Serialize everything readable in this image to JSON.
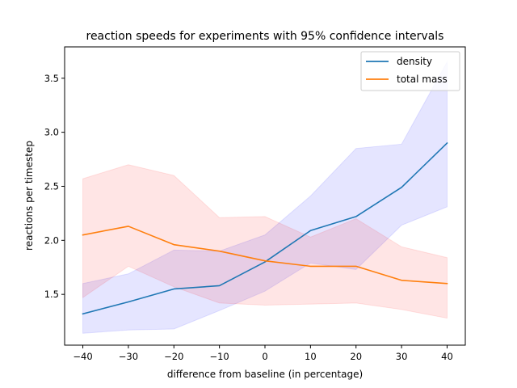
{
  "chart_data": {
    "type": "line",
    "title": "reaction speeds for experiments with 95% confidence intervals",
    "xlabel": "difference from baseline (in percentage)",
    "ylabel": "reactions per timestep",
    "x": [
      -40,
      -30,
      -20,
      -10,
      0,
      10,
      20,
      30,
      40
    ],
    "xlim": [
      -44,
      44
    ],
    "ylim": [
      1.03,
      3.79
    ],
    "xticks": [
      "−40",
      "−30",
      "−20",
      "−10",
      "0",
      "10",
      "20",
      "30",
      "40"
    ],
    "yticks": [
      "1.5",
      "2.0",
      "2.5",
      "3.0",
      "3.5"
    ],
    "grid": false,
    "legend_position": "top-right",
    "series": [
      {
        "name": "density",
        "color": "#1f77b4",
        "band_color": "#0000ff",
        "values": [
          1.32,
          1.43,
          1.55,
          1.58,
          1.8,
          2.09,
          2.22,
          2.49,
          2.9
        ],
        "lower": [
          1.14,
          1.17,
          1.18,
          1.35,
          1.53,
          1.79,
          1.73,
          2.14,
          2.31
        ],
        "upper": [
          1.6,
          1.69,
          1.91,
          1.9,
          2.05,
          2.41,
          2.85,
          2.89,
          3.65
        ]
      },
      {
        "name": "total mass",
        "color": "#ff7f0e",
        "band_color": "#ff0000",
        "values": [
          2.05,
          2.13,
          1.96,
          1.9,
          1.81,
          1.76,
          1.76,
          1.63,
          1.6
        ],
        "lower": [
          1.47,
          1.76,
          1.57,
          1.42,
          1.4,
          1.41,
          1.42,
          1.36,
          1.28
        ],
        "upper": [
          2.57,
          2.7,
          2.6,
          2.21,
          2.22,
          2.03,
          2.2,
          1.94,
          1.84
        ]
      }
    ]
  }
}
